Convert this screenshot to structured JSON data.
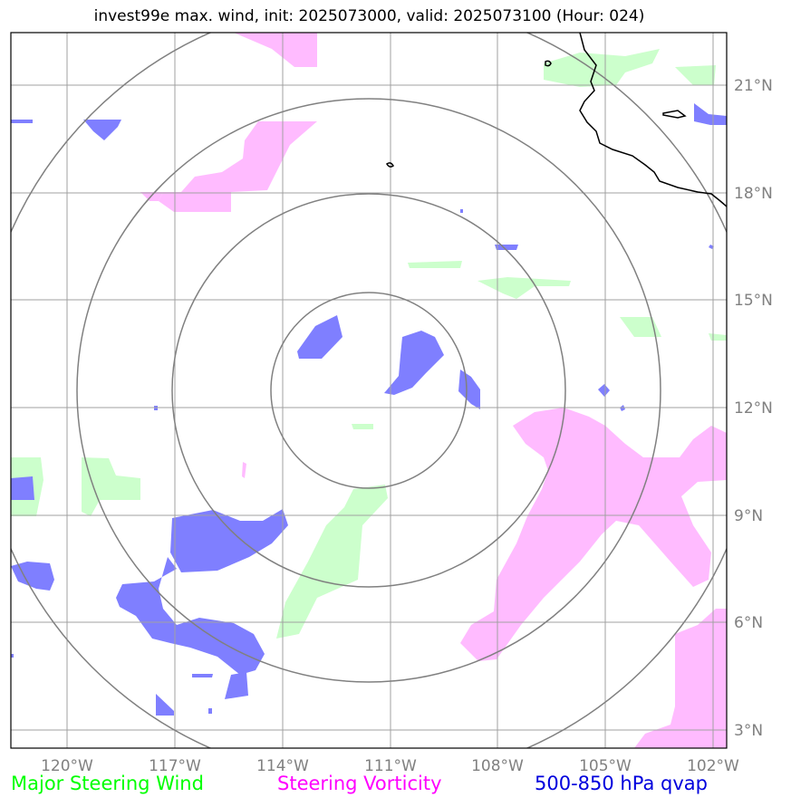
{
  "title": "invest99e max. wind, init: 2025073000, valid: 2025073100 (Hour: 024)",
  "map": {
    "lon_labels": [
      "120°W",
      "117°W",
      "114°W",
      "111°W",
      "108°W",
      "105°W",
      "102°W"
    ],
    "lat_labels": [
      "21°N",
      "18°N",
      "15°N",
      "12°N",
      "9°N",
      "6°N",
      "3°N"
    ],
    "range_rings": 4,
    "colors": {
      "steering_wind": "#ccffcc",
      "steering_vorticity": "#ffbbff",
      "qvap": "#7f7fff",
      "gridline": "#a0a0a0",
      "ring": "#808080",
      "coastline": "#000000"
    }
  },
  "legend": {
    "wind": "Major Steering Wind",
    "vorticity": "Steering Vorticity",
    "qvap": "500-850 hPa qvap"
  }
}
